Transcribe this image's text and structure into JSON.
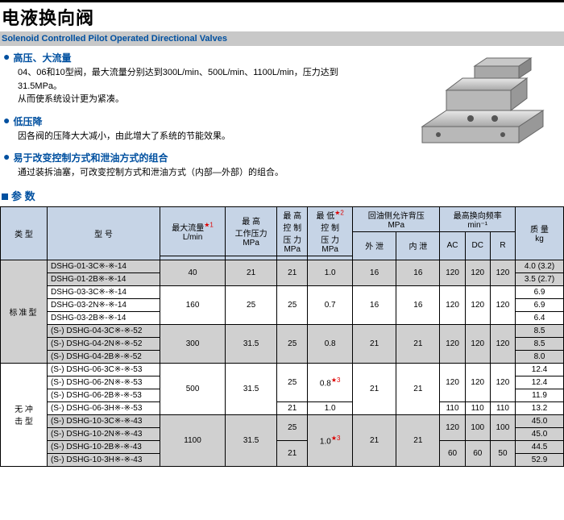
{
  "header": {
    "title_cn": "电液换向阀",
    "subtitle_en": "Solenoid Controlled Pilot Operated Directional Valves"
  },
  "features": [
    {
      "title": "高压、大流量",
      "body": "04、06和10型阀，最大流量分别达到300L/min、500L/min、1100L/min，压力达到31.5MPa。\n从而使系统设计更为紧凑。"
    },
    {
      "title": "低压降",
      "body": "因各阀的压降大大减小，由此增大了系统的节能效果。"
    },
    {
      "title": "易于改变控制方式和泄油方式的组合",
      "body": "通过装拆油塞，可改变控制方式和泄油方式（内部—外部）的组合。"
    }
  ],
  "section_label": "参 数",
  "table": {
    "head": {
      "type": "类 型",
      "model": "型 号",
      "maxflow": "最大流量",
      "maxflow_unit": "L/min",
      "maxflow_star": "★1",
      "maxwork": "最 高",
      "maxwork2": "工作压力",
      "maxwork_unit": "MPa",
      "maxctrl": "最 高",
      "maxctrl2": "控 制",
      "maxctrl3": "压 力",
      "maxctrl_unit": "MPa",
      "minctrl": "最 低",
      "minctrl2": "控 制",
      "minctrl3": "压 力",
      "minctrl_unit": "MPa",
      "minctrl_star": "★2",
      "backp": "回油侧允许背压",
      "backp_unit": "MPa",
      "ext": "外 泄",
      "int": "内 泄",
      "freq": "最高换向频率",
      "freq_unit": "min⁻¹",
      "ac": "AC",
      "dc": "DC",
      "r": "R",
      "mass": "质 量",
      "mass_unit": "kg"
    },
    "groups": [
      {
        "type_label": "标准型",
        "type_rows": 5,
        "grey": true,
        "blocks": [
          {
            "rows": [
              {
                "model": "DSHG-01-3C※-※-14",
                "mass": "4.0 (3.2)"
              },
              {
                "model": "DSHG-01-2B※-※-14",
                "mass": "3.5 (2.7)"
              }
            ],
            "maxflow": "40",
            "maxwork": "21",
            "maxctrl": "21",
            "minctrl": "1.0",
            "ext": "16",
            "int": "16",
            "ac": "120",
            "dc": "120",
            "r": "120"
          }
        ]
      },
      {
        "type_rows": 3,
        "grey": false,
        "blocks": [
          {
            "rows": [
              {
                "model": "DSHG-03-3C※-※-14",
                "mass": "6.9"
              },
              {
                "model": "DSHG-03-2N※-※-14",
                "mass": "6.9"
              },
              {
                "model": "DSHG-03-2B※-※-14",
                "mass": "6.4"
              }
            ],
            "maxflow": "160",
            "maxwork": "25",
            "maxctrl": "25",
            "minctrl": "0.7",
            "ext": "16",
            "int": "16",
            "ac": "120",
            "dc": "120",
            "r": "120"
          }
        ]
      },
      {
        "type_rows": 3,
        "grey": true,
        "blocks": [
          {
            "rows": [
              {
                "model": "(S-) DSHG-04-3C※-※-52",
                "mass": "8.5"
              },
              {
                "model": "(S-) DSHG-04-2N※-※-52",
                "mass": "8.5"
              },
              {
                "model": "(S-) DSHG-04-2B※-※-52",
                "mass": "8.0"
              }
            ],
            "maxflow": "300",
            "maxwork": "31.5",
            "maxctrl": "25",
            "minctrl": "0.8",
            "ext": "21",
            "int": "21",
            "ac": "120",
            "dc": "120",
            "r": "120"
          }
        ]
      },
      {
        "type_label": "无 冲\n击 型",
        "type_rows": 8,
        "grey": false,
        "blocks": [
          {
            "rows": [
              {
                "model": "(S-) DSHG-06-3C※-※-53",
                "mass": "12.4"
              },
              {
                "model": "(S-) DSHG-06-2N※-※-53",
                "mass": "12.4"
              },
              {
                "model": "(S-) DSHG-06-2B※-※-53",
                "mass": "11.9"
              }
            ],
            "maxflow": "500",
            "maxwork": "31.5",
            "maxctrl": "25",
            "minctrl": "0.8★3",
            "ext": "21",
            "int": "21",
            "ac": "120",
            "dc": "120",
            "r": "120",
            "has_tail": {
              "model": "(S-) DSHG-06-3H※-※-53",
              "maxctrl": "21",
              "minctrl": "1.0",
              "ac": "110",
              "dc": "110",
              "r": "110",
              "mass": "13.2"
            }
          }
        ]
      },
      {
        "grey": true,
        "blocks": [
          {
            "rows": [
              {
                "model": "(S-) DSHG-10-3C※-※-43",
                "mass": "45.0"
              },
              {
                "model": "(S-) DSHG-10-2N※-※-43",
                "mass": "45.0"
              }
            ],
            "maxflow": "1100",
            "maxwork": "31.5",
            "maxctrl": "25",
            "minctrl": "1.0★3",
            "ext": "21",
            "int": "21",
            "ac": "120",
            "dc": "100",
            "r": "100",
            "tail_rows": [
              {
                "model": "(S-) DSHG-10-2B※-※-43",
                "maxctrl": "21",
                "ac": "60",
                "dc": "60",
                "r": "50",
                "mass": "44.5"
              },
              {
                "model": "(S-) DSHG-10-3H※-※-43",
                "mass": "52.9"
              }
            ]
          }
        ]
      }
    ]
  },
  "colors": {
    "header_bg": "#c6d4e6",
    "grey_bg": "#d0d0d0",
    "accent": "#0050a0"
  }
}
